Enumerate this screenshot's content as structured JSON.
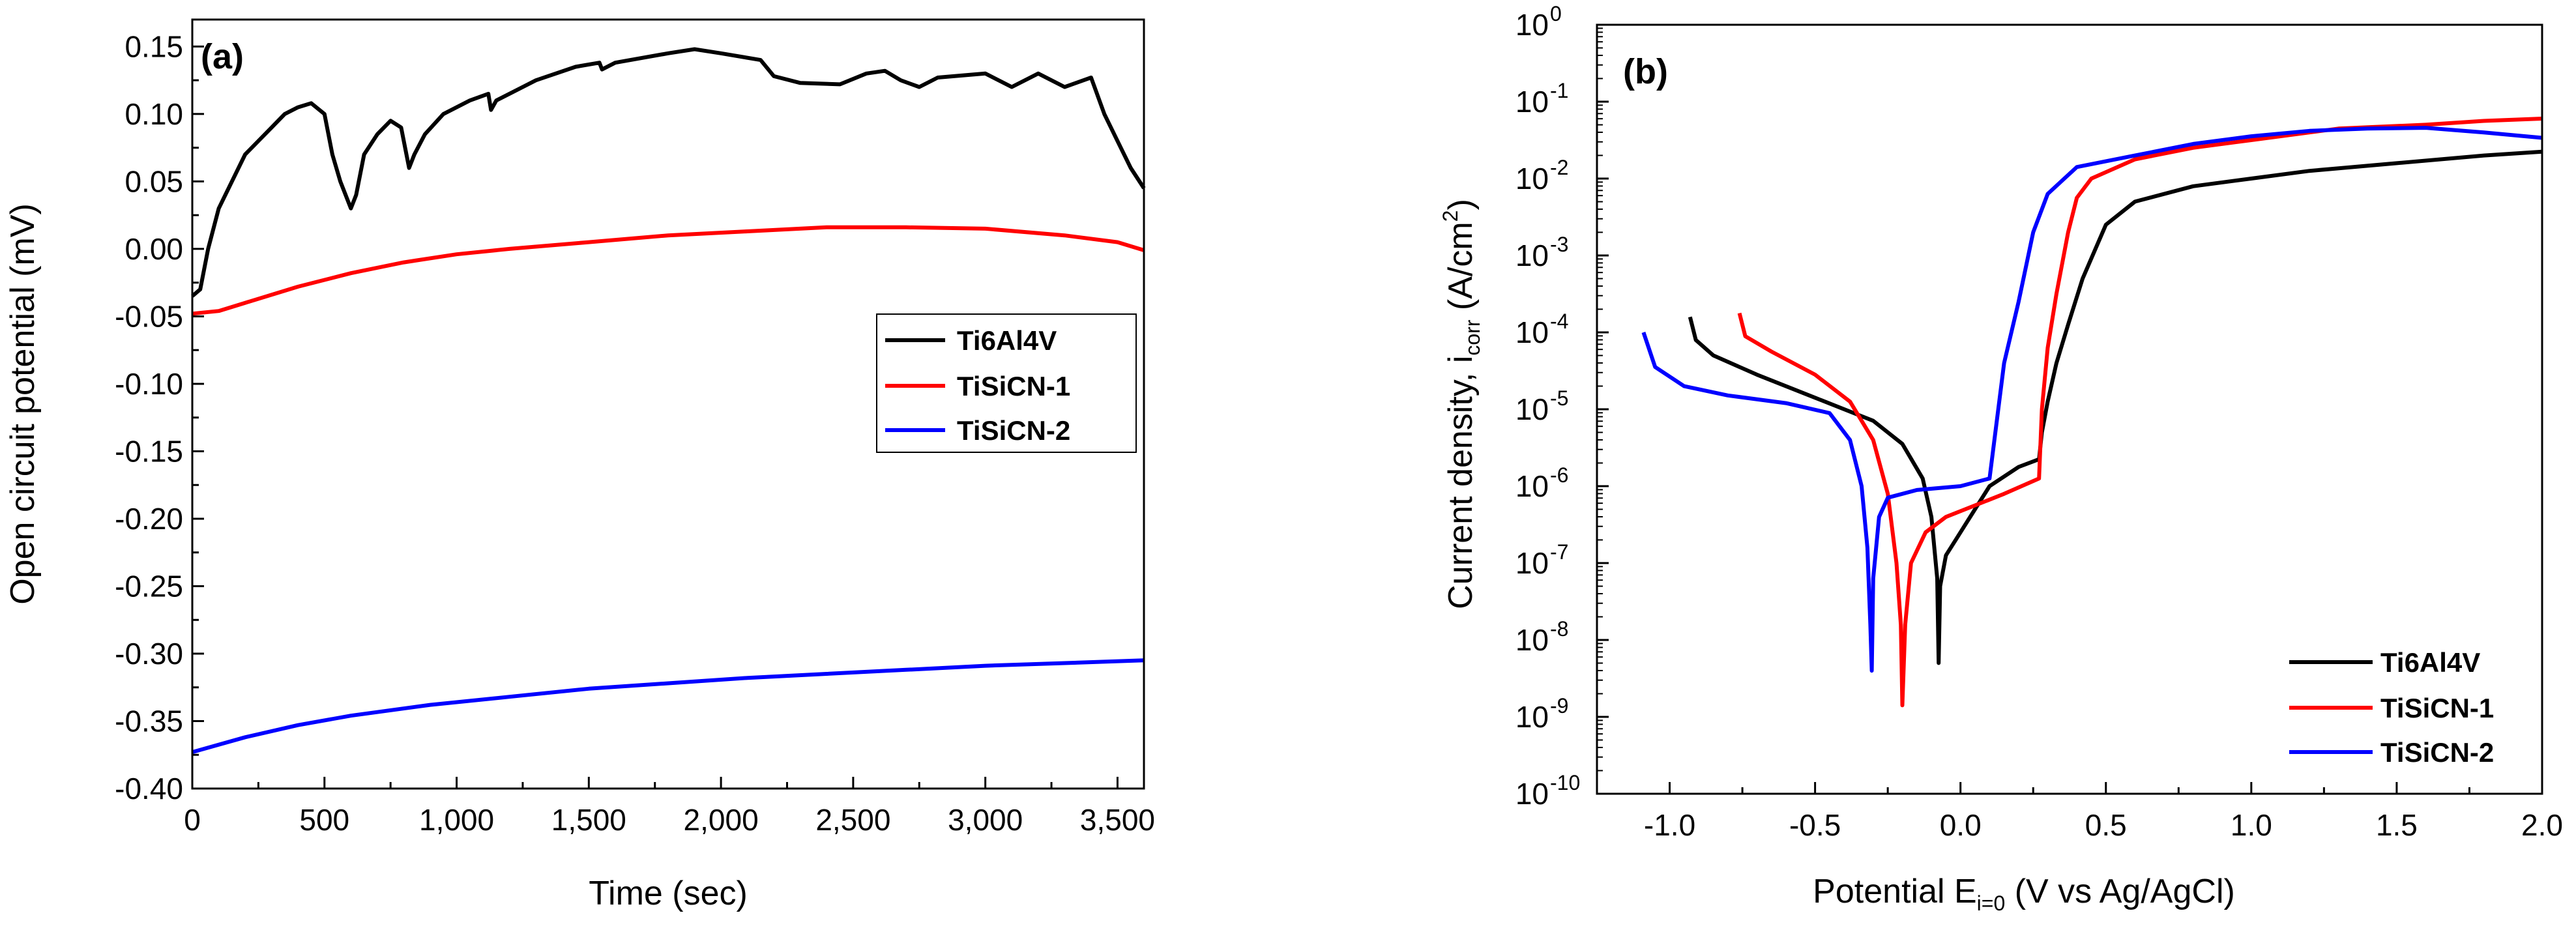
{
  "colors": {
    "Ti6Al4V": "#000000",
    "TiSiCN-1": "#ff0000",
    "TiSiCN-2": "#0000ff"
  },
  "chart_data": [
    {
      "type": "line",
      "panel_label": "(a)",
      "title": "",
      "xlabel": "Time (sec)",
      "ylabel": "Open circuit potential (mV)",
      "xlim": [
        0,
        3600
      ],
      "ylim": [
        -0.4,
        0.17
      ],
      "x_ticks": [
        0,
        500,
        1000,
        1500,
        2000,
        2500,
        3000,
        3500
      ],
      "x_tick_labels": [
        "0",
        "500",
        "1,000",
        "1,500",
        "2,000",
        "2,500",
        "3,000",
        "3,500"
      ],
      "y_ticks": [
        0.15,
        0.1,
        0.05,
        0.0,
        -0.05,
        -0.1,
        -0.15,
        -0.2,
        -0.25,
        -0.3,
        -0.35,
        -0.4
      ],
      "y_tick_labels": [
        "0.15",
        "0.10",
        "0.05",
        "0.00",
        "-0.05",
        "-0.10",
        "-0.15",
        "-0.20",
        "-0.25",
        "-0.30",
        "-0.35",
        "-0.40"
      ],
      "legend": {
        "position": "center-right",
        "entries": [
          "Ti6Al4V",
          "TiSiCN-1",
          "TiSiCN-2"
        ]
      },
      "series": [
        {
          "name": "Ti6Al4V",
          "color": "#000000",
          "points": [
            [
              0,
              -0.035
            ],
            [
              30,
              -0.03
            ],
            [
              60,
              0.0
            ],
            [
              100,
              0.03
            ],
            [
              150,
              0.05
            ],
            [
              200,
              0.07
            ],
            [
              250,
              0.08
            ],
            [
              300,
              0.09
            ],
            [
              350,
              0.1
            ],
            [
              400,
              0.105
            ],
            [
              450,
              0.108
            ],
            [
              500,
              0.1
            ],
            [
              530,
              0.07
            ],
            [
              560,
              0.05
            ],
            [
              600,
              0.03
            ],
            [
              620,
              0.04
            ],
            [
              650,
              0.07
            ],
            [
              700,
              0.085
            ],
            [
              750,
              0.095
            ],
            [
              790,
              0.09
            ],
            [
              820,
              0.06
            ],
            [
              840,
              0.07
            ],
            [
              880,
              0.085
            ],
            [
              950,
              0.1
            ],
            [
              1050,
              0.11
            ],
            [
              1120,
              0.115
            ],
            [
              1130,
              0.103
            ],
            [
              1150,
              0.11
            ],
            [
              1300,
              0.125
            ],
            [
              1450,
              0.135
            ],
            [
              1540,
              0.138
            ],
            [
              1550,
              0.133
            ],
            [
              1600,
              0.138
            ],
            [
              1800,
              0.145
            ],
            [
              1900,
              0.148
            ],
            [
              2000,
              0.145
            ],
            [
              2150,
              0.14
            ],
            [
              2200,
              0.128
            ],
            [
              2300,
              0.123
            ],
            [
              2450,
              0.122
            ],
            [
              2550,
              0.13
            ],
            [
              2620,
              0.132
            ],
            [
              2680,
              0.125
            ],
            [
              2750,
              0.12
            ],
            [
              2820,
              0.127
            ],
            [
              3000,
              0.13
            ],
            [
              3100,
              0.12
            ],
            [
              3200,
              0.13
            ],
            [
              3300,
              0.12
            ],
            [
              3400,
              0.127
            ],
            [
              3450,
              0.1
            ],
            [
              3500,
              0.08
            ],
            [
              3550,
              0.06
            ],
            [
              3600,
              0.045
            ]
          ]
        },
        {
          "name": "TiSiCN-1",
          "color": "#ff0000",
          "points": [
            [
              0,
              -0.048
            ],
            [
              100,
              -0.046
            ],
            [
              200,
              -0.04
            ],
            [
              400,
              -0.028
            ],
            [
              600,
              -0.018
            ],
            [
              800,
              -0.01
            ],
            [
              1000,
              -0.004
            ],
            [
              1200,
              0.0
            ],
            [
              1500,
              0.005
            ],
            [
              1800,
              0.01
            ],
            [
              2100,
              0.013
            ],
            [
              2400,
              0.016
            ],
            [
              2700,
              0.016
            ],
            [
              3000,
              0.015
            ],
            [
              3300,
              0.01
            ],
            [
              3500,
              0.005
            ],
            [
              3600,
              -0.001
            ]
          ]
        },
        {
          "name": "TiSiCN-2",
          "color": "#0000ff",
          "points": [
            [
              0,
              -0.373
            ],
            [
              200,
              -0.362
            ],
            [
              400,
              -0.353
            ],
            [
              600,
              -0.346
            ],
            [
              900,
              -0.338
            ],
            [
              1200,
              -0.332
            ],
            [
              1500,
              -0.326
            ],
            [
              1800,
              -0.322
            ],
            [
              2100,
              -0.318
            ],
            [
              2400,
              -0.315
            ],
            [
              2700,
              -0.312
            ],
            [
              3000,
              -0.309
            ],
            [
              3300,
              -0.307
            ],
            [
              3600,
              -0.305
            ]
          ]
        }
      ]
    },
    {
      "type": "line",
      "panel_label": "(b)",
      "title": "",
      "xlabel": "Potential E",
      "xlabel_sub": "i=0",
      "xlabel_tail": " (V vs Ag/AgCl)",
      "ylabel": "Current density, i",
      "ylabel_sub": "corr",
      "ylabel_tail": " (A/cm",
      "ylabel_sup": "2",
      "ylabel_end": ")",
      "xlim": [
        -1.25,
        2.0
      ],
      "ylim": [
        -10,
        0
      ],
      "y_scale": "log",
      "x_ticks": [
        -1.0,
        -0.5,
        0.0,
        0.5,
        1.0,
        1.5,
        2.0
      ],
      "x_tick_labels": [
        "-1.0",
        "-0.5",
        "0.0",
        "0.5",
        "1.0",
        "1.5",
        "2.0"
      ],
      "y_ticks": [
        0,
        -1,
        -2,
        -3,
        -4,
        -5,
        -6,
        -7,
        -8,
        -9,
        -10
      ],
      "y_tick_base": "10",
      "y_tick_exponents": [
        "0",
        "-1",
        "-2",
        "-3",
        "-4",
        "-5",
        "-6",
        "-7",
        "-8",
        "-9",
        "-10"
      ],
      "legend": {
        "position": "bottom-right",
        "entries": [
          "Ti6Al4V",
          "TiSiCN-1",
          "TiSiCN-2"
        ]
      },
      "series": [
        {
          "name": "Ti6Al4V",
          "color": "#000000",
          "points": [
            [
              -0.93,
              -3.8
            ],
            [
              -0.91,
              -4.1
            ],
            [
              -0.85,
              -4.3
            ],
            [
              -0.7,
              -4.55
            ],
            [
              -0.5,
              -4.85
            ],
            [
              -0.3,
              -5.15
            ],
            [
              -0.2,
              -5.45
            ],
            [
              -0.13,
              -5.9
            ],
            [
              -0.1,
              -6.4
            ],
            [
              -0.08,
              -7.2
            ],
            [
              -0.075,
              -8.3
            ],
            [
              -0.07,
              -7.3
            ],
            [
              -0.05,
              -6.9
            ],
            [
              0.0,
              -6.6
            ],
            [
              0.05,
              -6.3
            ],
            [
              0.1,
              -6.0
            ],
            [
              0.2,
              -5.75
            ],
            [
              0.27,
              -5.65
            ],
            [
              0.28,
              -5.3
            ],
            [
              0.3,
              -4.9
            ],
            [
              0.33,
              -4.4
            ],
            [
              0.37,
              -3.9
            ],
            [
              0.42,
              -3.3
            ],
            [
              0.5,
              -2.6
            ],
            [
              0.6,
              -2.3
            ],
            [
              0.8,
              -2.1
            ],
            [
              1.0,
              -2.0
            ],
            [
              1.2,
              -1.9
            ],
            [
              1.5,
              -1.8
            ],
            [
              1.8,
              -1.7
            ],
            [
              2.0,
              -1.65
            ]
          ]
        },
        {
          "name": "TiSiCN-1",
          "color": "#ff0000",
          "points": [
            [
              -0.76,
              -3.75
            ],
            [
              -0.74,
              -4.05
            ],
            [
              -0.65,
              -4.25
            ],
            [
              -0.5,
              -4.55
            ],
            [
              -0.38,
              -4.9
            ],
            [
              -0.3,
              -5.4
            ],
            [
              -0.25,
              -6.1
            ],
            [
              -0.22,
              -7.0
            ],
            [
              -0.205,
              -7.8
            ],
            [
              -0.2,
              -8.85
            ],
            [
              -0.19,
              -7.8
            ],
            [
              -0.17,
              -7.0
            ],
            [
              -0.12,
              -6.6
            ],
            [
              -0.05,
              -6.4
            ],
            [
              0.05,
              -6.25
            ],
            [
              0.15,
              -6.1
            ],
            [
              0.27,
              -5.9
            ],
            [
              0.28,
              -5.0
            ],
            [
              0.3,
              -4.2
            ],
            [
              0.33,
              -3.5
            ],
            [
              0.37,
              -2.7
            ],
            [
              0.4,
              -2.25
            ],
            [
              0.45,
              -2.0
            ],
            [
              0.6,
              -1.75
            ],
            [
              0.8,
              -1.6
            ],
            [
              1.0,
              -1.5
            ],
            [
              1.3,
              -1.35
            ],
            [
              1.6,
              -1.3
            ],
            [
              1.8,
              -1.25
            ],
            [
              2.0,
              -1.22
            ]
          ]
        },
        {
          "name": "TiSiCN-2",
          "color": "#0000ff",
          "points": [
            [
              -1.09,
              -4.0
            ],
            [
              -1.05,
              -4.45
            ],
            [
              -0.95,
              -4.7
            ],
            [
              -0.8,
              -4.82
            ],
            [
              -0.6,
              -4.92
            ],
            [
              -0.45,
              -5.05
            ],
            [
              -0.38,
              -5.4
            ],
            [
              -0.34,
              -6.0
            ],
            [
              -0.32,
              -6.8
            ],
            [
              -0.31,
              -7.8
            ],
            [
              -0.305,
              -8.4
            ],
            [
              -0.3,
              -7.2
            ],
            [
              -0.28,
              -6.4
            ],
            [
              -0.25,
              -6.15
            ],
            [
              -0.15,
              -6.05
            ],
            [
              0.0,
              -6.0
            ],
            [
              0.1,
              -5.9
            ],
            [
              0.12,
              -5.3
            ],
            [
              0.15,
              -4.4
            ],
            [
              0.2,
              -3.6
            ],
            [
              0.25,
              -2.7
            ],
            [
              0.3,
              -2.2
            ],
            [
              0.4,
              -1.85
            ],
            [
              0.6,
              -1.7
            ],
            [
              0.8,
              -1.55
            ],
            [
              1.0,
              -1.45
            ],
            [
              1.2,
              -1.38
            ],
            [
              1.4,
              -1.35
            ],
            [
              1.6,
              -1.34
            ],
            [
              1.8,
              -1.4
            ],
            [
              2.0,
              -1.47
            ]
          ]
        }
      ]
    }
  ]
}
